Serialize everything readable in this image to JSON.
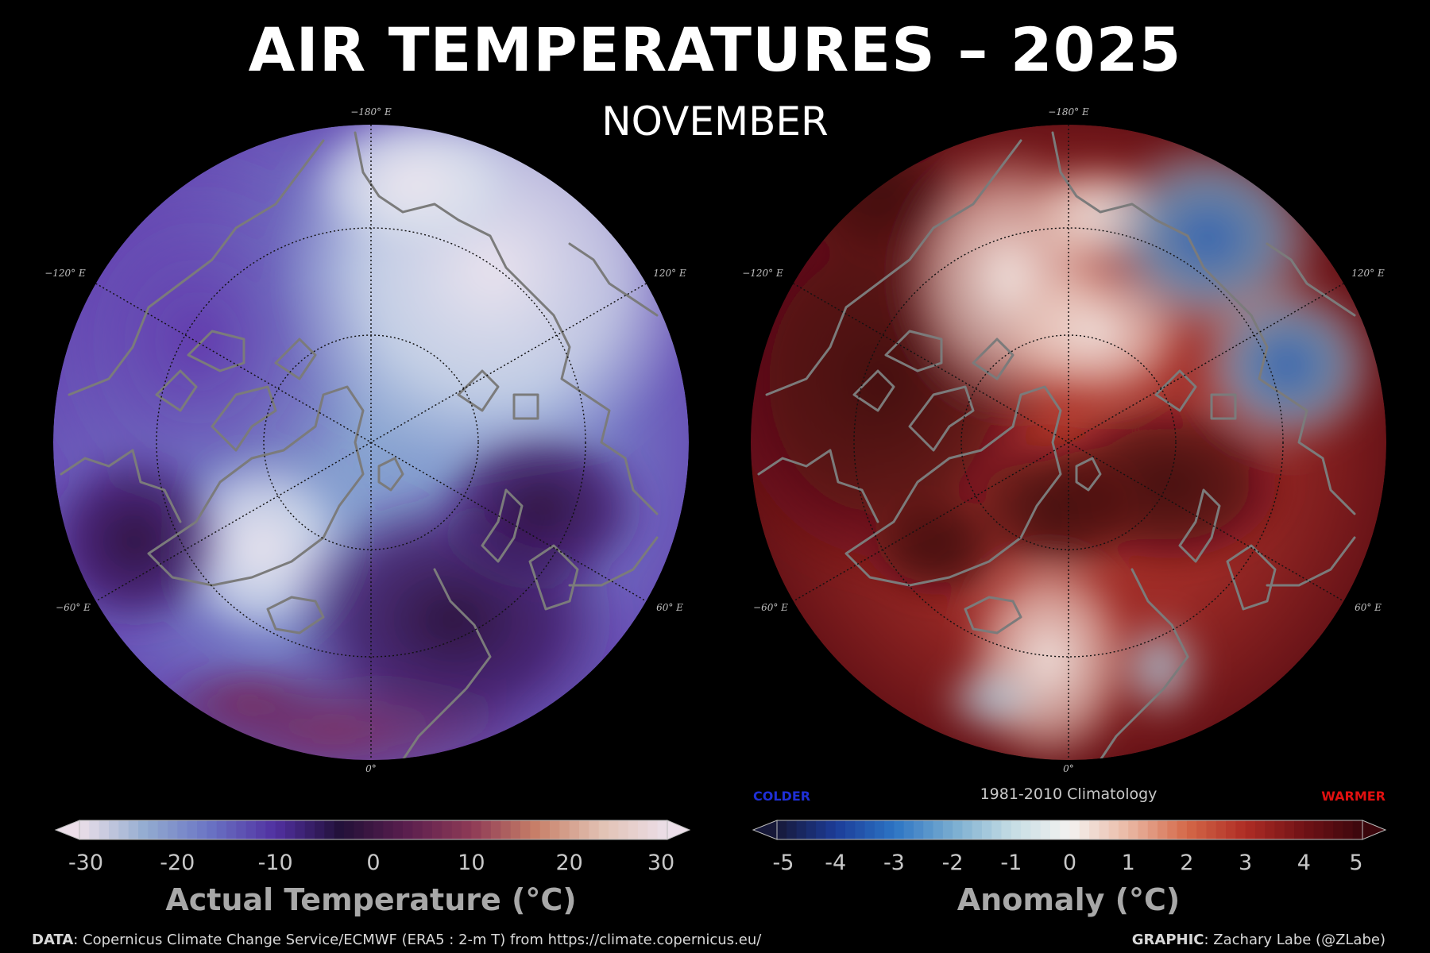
{
  "title": "AIR TEMPERATURES – 2025",
  "subtitle": "NOVEMBER",
  "maps": {
    "left": {
      "longitude_labels": {
        "top": "−180° E",
        "upper_left": "−120° E",
        "upper_right": "120° E",
        "lower_left": "−60° E",
        "lower_right": "60° E",
        "bottom": "0°"
      },
      "colormap": [
        "#ecdfe9",
        "#93acd1",
        "#6a73c4",
        "#5030a0",
        "#221038",
        "#5a1e4e",
        "#8e3a56",
        "#c88068",
        "#e2c2b4",
        "#ecdfe9"
      ]
    },
    "right": {
      "longitude_labels": {
        "top": "−180° E",
        "upper_left": "−120° E",
        "upper_right": "120° E",
        "lower_left": "−60° E",
        "lower_right": "60° E",
        "bottom": "0°"
      },
      "colormap": [
        "#161838",
        "#1c3c98",
        "#2c74c4",
        "#78acd0",
        "#c4dce4",
        "#f4f2f0",
        "#eab8a4",
        "#d46848",
        "#ae2c24",
        "#701216",
        "#3a060c"
      ]
    }
  },
  "colorbars": {
    "left": {
      "ticks": [
        "-30",
        "-20",
        "-10",
        "0",
        "10",
        "20",
        "30"
      ],
      "range": [
        -30,
        30
      ],
      "title": "Actual Temperature (°C)"
    },
    "right": {
      "ticks": [
        "-5",
        "-4",
        "-3",
        "-2",
        "-1",
        "0",
        "1",
        "2",
        "3",
        "4",
        "5"
      ],
      "range": [
        -5,
        5
      ],
      "title": "Anomaly (°C)",
      "baseline_label": "1981-2010 Climatology",
      "colder_label": "COLDER",
      "warmer_label": "WARMER"
    }
  },
  "footer": {
    "data_label": "DATA",
    "data_text": ": Copernicus Climate Change Service/ECMWF (ERA5 : 2-m T) from https://climate.copernicus.eu/",
    "graphic_label": "GRAPHIC",
    "graphic_text": ": Zachary Labe (@ZLabe)"
  }
}
